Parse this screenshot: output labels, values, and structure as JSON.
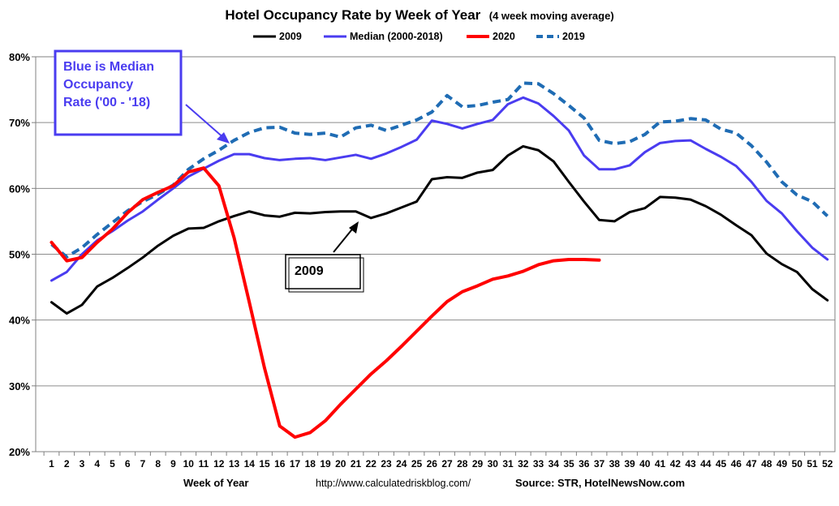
{
  "chart_data": {
    "type": "line",
    "title": "Hotel Occupancy Rate by  Week of Year",
    "subtitle": "(4 week moving average)",
    "xlabel": "Week of Year",
    "ylabel": "",
    "ylim": [
      20,
      80
    ],
    "yticks": [
      "20%",
      "30%",
      "40%",
      "50%",
      "60%",
      "70%",
      "80%"
    ],
    "x": [
      1,
      2,
      3,
      4,
      5,
      6,
      7,
      8,
      9,
      10,
      11,
      12,
      13,
      14,
      15,
      16,
      17,
      18,
      19,
      20,
      21,
      22,
      23,
      24,
      25,
      26,
      27,
      28,
      29,
      30,
      31,
      32,
      33,
      34,
      35,
      36,
      37,
      38,
      39,
      40,
      41,
      42,
      43,
      44,
      45,
      46,
      47,
      48,
      49,
      50,
      51,
      52
    ],
    "grid": "horizontal",
    "legend_position": "top",
    "series": [
      {
        "name": "2009",
        "color": "#000000",
        "dash": "solid",
        "values": [
          42.7,
          41.0,
          42.3,
          45.1,
          46.4,
          47.9,
          49.5,
          51.3,
          52.8,
          53.9,
          54.0,
          55.0,
          55.8,
          56.5,
          55.9,
          55.7,
          56.3,
          56.2,
          56.4,
          56.5,
          56.5,
          55.5,
          56.2,
          57.1,
          58.0,
          61.4,
          61.7,
          61.6,
          62.4,
          62.8,
          65.0,
          66.4,
          65.8,
          64.1,
          61.0,
          58.0,
          55.2,
          55.0,
          56.4,
          57.0,
          58.7,
          58.6,
          58.3,
          57.3,
          56.0,
          54.4,
          52.9,
          50.1,
          48.5,
          47.3,
          44.7,
          43.0
        ]
      },
      {
        "name": "Median (2000-2018)",
        "color": "#4a3cf0",
        "dash": "solid",
        "values": [
          46.0,
          47.3,
          50.0,
          52.1,
          53.5,
          55.1,
          56.5,
          58.3,
          60.0,
          61.8,
          63.0,
          64.2,
          65.2,
          65.2,
          64.6,
          64.3,
          64.5,
          64.6,
          64.3,
          64.7,
          65.1,
          64.5,
          65.3,
          66.3,
          67.4,
          70.3,
          69.8,
          69.1,
          69.8,
          70.4,
          72.8,
          73.8,
          72.9,
          71.0,
          68.8,
          65.0,
          62.9,
          62.9,
          63.5,
          65.5,
          66.9,
          67.2,
          67.3,
          66.0,
          64.8,
          63.4,
          61.0,
          58.1,
          56.2,
          53.5,
          51.0,
          49.2
        ]
      },
      {
        "name": "2020",
        "color": "#ff0000",
        "dash": "solid",
        "values": [
          51.8,
          49.0,
          49.5,
          51.8,
          53.8,
          56.3,
          58.3,
          59.4,
          60.4,
          62.5,
          63.1,
          60.4,
          52.5,
          42.7,
          32.7,
          23.9,
          22.2,
          22.9,
          24.7,
          27.2,
          29.5,
          31.8,
          33.8,
          36.0,
          38.3,
          40.6,
          42.8,
          44.3,
          45.2,
          46.2,
          46.7,
          47.4,
          48.4,
          49.0,
          49.2,
          49.2,
          49.1,
          null,
          null,
          null,
          null,
          null,
          null,
          null,
          null,
          null,
          null,
          null,
          null,
          null,
          null,
          null
        ]
      },
      {
        "name": "2019",
        "color": "#1f6cb4",
        "dash": "dashed",
        "values": [
          51.5,
          49.6,
          51.0,
          53.0,
          54.8,
          56.6,
          58.0,
          59.1,
          60.5,
          62.9,
          64.5,
          65.8,
          67.3,
          68.5,
          69.2,
          69.3,
          68.4,
          68.2,
          68.4,
          67.8,
          69.2,
          69.6,
          68.8,
          69.6,
          70.4,
          71.6,
          74.1,
          72.4,
          72.6,
          73.1,
          73.5,
          76.0,
          75.9,
          74.4,
          72.6,
          70.7,
          67.3,
          66.8,
          67.1,
          68.2,
          70.1,
          70.2,
          70.6,
          70.4,
          69.0,
          68.4,
          66.5,
          64.0,
          61.0,
          59.0,
          58.0,
          55.8
        ]
      }
    ],
    "annotations": [
      {
        "lines": [
          "Blue is Median",
          "Occupancy",
          "Rate ('00 - '18)"
        ]
      },
      {
        "lines": [
          "2009"
        ]
      }
    ],
    "footer": {
      "url": "http://www.calculatedriskblog.com/",
      "source": "Source: STR, HotelNewsNow.com"
    }
  }
}
